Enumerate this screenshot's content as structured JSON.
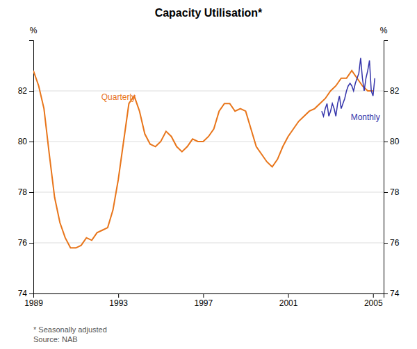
{
  "chart_data": {
    "type": "line",
    "title": "Capacity Utilisation*",
    "ylabel": "%",
    "y2label": "%",
    "footnote": "*  Seasonally adjusted\nSource: NAB",
    "xlim": [
      1989,
      2005.5
    ],
    "xticks": [
      1989,
      1993,
      1997,
      2001,
      2005
    ],
    "ylim": [
      74,
      84
    ],
    "yticks": [
      74,
      76,
      78,
      80,
      82
    ],
    "y2lim": [
      74,
      84
    ],
    "y2ticks": [
      74,
      76,
      78,
      80,
      82
    ],
    "grid": true,
    "series": [
      {
        "color": "#E8751A",
        "x": [
          1989.0,
          1989.25,
          1989.5,
          1989.75,
          1990.0,
          1990.25,
          1990.5,
          1990.75,
          1991.0,
          1991.25,
          1991.5,
          1991.75,
          1992.0,
          1992.25,
          1992.5,
          1992.75,
          1993.0,
          1993.25,
          1993.5,
          1993.75,
          1994.0,
          1994.25,
          1994.5,
          1994.75,
          1995.0,
          1995.25,
          1995.5,
          1995.75,
          1996.0,
          1996.25,
          1996.5,
          1996.75,
          1997.0,
          1997.25,
          1997.5,
          1997.75,
          1998.0,
          1998.25,
          1998.5,
          1998.75,
          1999.0,
          1999.25,
          1999.5,
          1999.75,
          2000.0,
          2000.25,
          2000.5,
          2000.75,
          2001.0,
          2001.25,
          2001.5,
          2001.75,
          2002.0,
          2002.25,
          2002.5,
          2002.75,
          2003.0,
          2003.25,
          2003.5,
          2003.75,
          2004.0,
          2004.25,
          2004.5,
          2004.75,
          2005.0
        ],
        "values": [
          82.8,
          82.2,
          81.3,
          79.5,
          77.8,
          76.8,
          76.2,
          75.8,
          75.8,
          75.9,
          76.2,
          76.1,
          76.4,
          76.5,
          76.6,
          77.3,
          78.5,
          80.0,
          81.5,
          81.8,
          81.2,
          80.3,
          79.9,
          79.8,
          80.0,
          80.4,
          80.2,
          79.8,
          79.6,
          79.8,
          80.1,
          80.0,
          80.0,
          80.2,
          80.5,
          81.2,
          81.5,
          81.5,
          81.2,
          81.3,
          81.2,
          80.5,
          79.8,
          79.5,
          79.2,
          79.0,
          79.3,
          79.8,
          80.2,
          80.5,
          80.8,
          81.0,
          81.2,
          81.3,
          81.5,
          81.7,
          82.0,
          82.2,
          82.5,
          82.5,
          82.8,
          82.5,
          82.2,
          82.0,
          82.0
        ]
      },
      {
        "color": "#3333AA",
        "x": [
          2002.583,
          2002.667,
          2002.75,
          2002.833,
          2002.917,
          2003.0,
          2003.083,
          2003.167,
          2003.25,
          2003.333,
          2003.417,
          2003.5,
          2003.583,
          2003.667,
          2003.75,
          2003.833,
          2003.917,
          2004.0,
          2004.083,
          2004.167,
          2004.25,
          2004.333,
          2004.417,
          2004.5,
          2004.583,
          2004.667,
          2004.75,
          2004.833,
          2004.917,
          2005.0,
          2005.083
        ],
        "values": [
          81.2,
          81.0,
          81.3,
          81.5,
          81.0,
          81.2,
          81.5,
          81.3,
          81.0,
          81.5,
          81.8,
          81.3,
          81.5,
          81.7,
          82.0,
          82.2,
          82.3,
          82.2,
          82.0,
          82.3,
          82.5,
          82.7,
          83.3,
          82.5,
          82.0,
          82.5,
          82.8,
          83.2,
          82.0,
          81.8,
          82.5
        ]
      }
    ],
    "annotations": [
      {
        "text": "Quarterly",
        "x": 1992.2,
        "y": 81.55,
        "color": "#E8751A"
      },
      {
        "text": "Monthly",
        "x": 2003.95,
        "y": 81.15,
        "color": "#3333AA"
      }
    ]
  }
}
